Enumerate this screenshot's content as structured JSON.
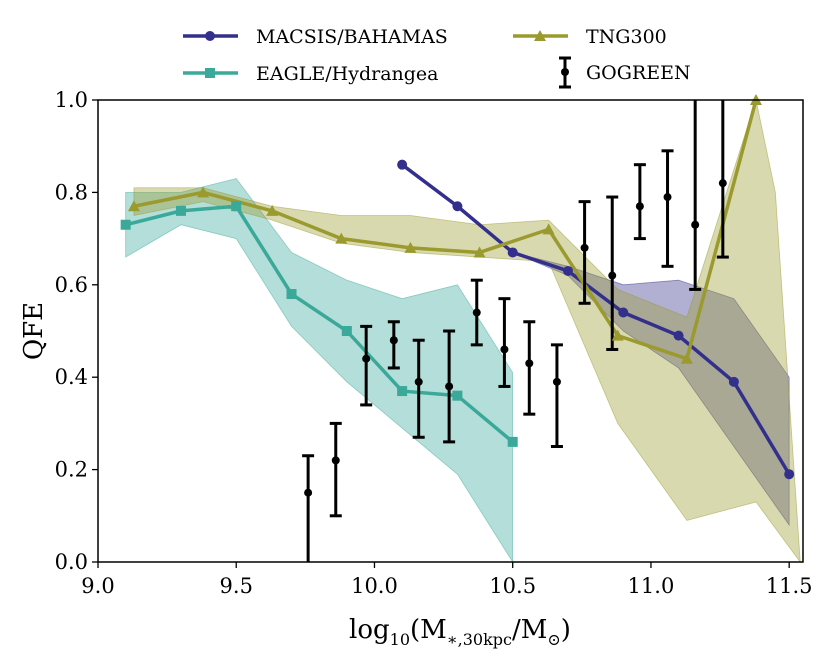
{
  "chart_data": {
    "type": "line",
    "title": "",
    "xlabel": "log10(M*,30kpc/M☉)",
    "xlabel_parts": {
      "pre": "log",
      "sub1": "10",
      "open": "(M",
      "sub2": "∗,30kpc",
      "mid": "/M",
      "sub3": "⊙",
      "close": ")"
    },
    "ylabel": "QFE",
    "xlim": [
      9.0,
      11.55
    ],
    "ylim": [
      0.0,
      1.0
    ],
    "xticks": [
      9.0,
      9.5,
      10.0,
      10.5,
      11.0,
      11.5
    ],
    "xtick_labels": [
      "9.0",
      "9.5",
      "10.0",
      "10.5",
      "11.0",
      "11.5"
    ],
    "yticks": [
      0.0,
      0.2,
      0.4,
      0.6,
      0.8,
      1.0
    ],
    "ytick_labels": [
      "0.0",
      "0.2",
      "0.4",
      "0.6",
      "0.8",
      "1.0"
    ],
    "legend_position": "top-outside",
    "series": [
      {
        "name": "MACSIS/BAHAMAS",
        "color": "#332f8c",
        "marker": "circle",
        "x": [
          10.1,
          10.3,
          10.5,
          10.7,
          10.9,
          11.1,
          11.3,
          11.5
        ],
        "y": [
          0.86,
          0.77,
          0.67,
          0.63,
          0.54,
          0.49,
          0.39,
          0.19
        ],
        "band_lower": [
          0.86,
          0.77,
          0.67,
          0.62,
          0.5,
          0.42,
          0.25,
          0.08
        ],
        "band_upper": [
          0.86,
          0.77,
          0.67,
          0.64,
          0.6,
          0.61,
          0.57,
          0.4
        ]
      },
      {
        "name": "EAGLE/Hydrangea",
        "color": "#3aa99a",
        "marker": "square",
        "x": [
          9.1,
          9.3,
          9.5,
          9.7,
          9.9,
          10.1,
          10.3,
          10.5
        ],
        "y": [
          0.73,
          0.76,
          0.77,
          0.58,
          0.5,
          0.37,
          0.36,
          0.26
        ],
        "band_lower": [
          0.66,
          0.73,
          0.7,
          0.51,
          0.39,
          0.29,
          0.19,
          0.0
        ],
        "band_upper": [
          0.8,
          0.8,
          0.83,
          0.67,
          0.61,
          0.57,
          0.6,
          0.41
        ]
      },
      {
        "name": "TNG300",
        "color": "#9a9a2e",
        "marker": "triangle",
        "x": [
          9.13,
          9.38,
          9.63,
          9.88,
          10.13,
          10.38,
          10.63,
          10.88,
          11.13,
          11.38
        ],
        "y": [
          0.77,
          0.8,
          0.76,
          0.7,
          0.68,
          0.67,
          0.72,
          0.49,
          0.44,
          1.0
        ],
        "band_lower": [
          0.75,
          0.78,
          0.74,
          0.69,
          0.67,
          0.66,
          0.65,
          0.3,
          0.09,
          0.13
        ],
        "band_upper": [
          0.81,
          0.81,
          0.77,
          0.75,
          0.75,
          0.73,
          0.74,
          0.59,
          0.53,
          1.0
        ],
        "band_ends": {
          "lower_end_x": 11.54,
          "lower_end_y": 0.0,
          "upper_end_x": 11.45,
          "upper_end_y": 0.8
        }
      },
      {
        "name": "GOGREEN",
        "color": "#000000",
        "marker": "errorbar",
        "x": [
          9.76,
          9.86,
          9.97,
          10.07,
          10.16,
          10.27,
          10.37,
          10.47,
          10.56,
          10.66,
          10.76,
          10.86,
          10.96,
          11.06,
          11.16,
          11.26
        ],
        "y": [
          0.15,
          0.22,
          0.44,
          0.48,
          0.39,
          0.38,
          0.54,
          0.46,
          0.43,
          0.39,
          0.68,
          0.62,
          0.77,
          0.79,
          0.73,
          0.82
        ],
        "err_low": [
          0.0,
          0.1,
          0.34,
          0.42,
          0.27,
          0.26,
          0.47,
          0.38,
          0.32,
          0.25,
          0.56,
          0.46,
          0.7,
          0.64,
          0.59,
          0.66
        ],
        "err_high": [
          0.23,
          0.3,
          0.51,
          0.52,
          0.48,
          0.5,
          0.61,
          0.57,
          0.52,
          0.47,
          0.78,
          0.79,
          0.86,
          0.89,
          1.0,
          1.0
        ]
      }
    ]
  },
  "legend": {
    "items": [
      {
        "label": "MACSIS/BAHAMAS",
        "series": 0
      },
      {
        "label": "EAGLE/Hydrangea",
        "series": 1
      },
      {
        "label": "TNG300",
        "series": 2
      },
      {
        "label": "GOGREEN",
        "series": 3
      }
    ]
  }
}
